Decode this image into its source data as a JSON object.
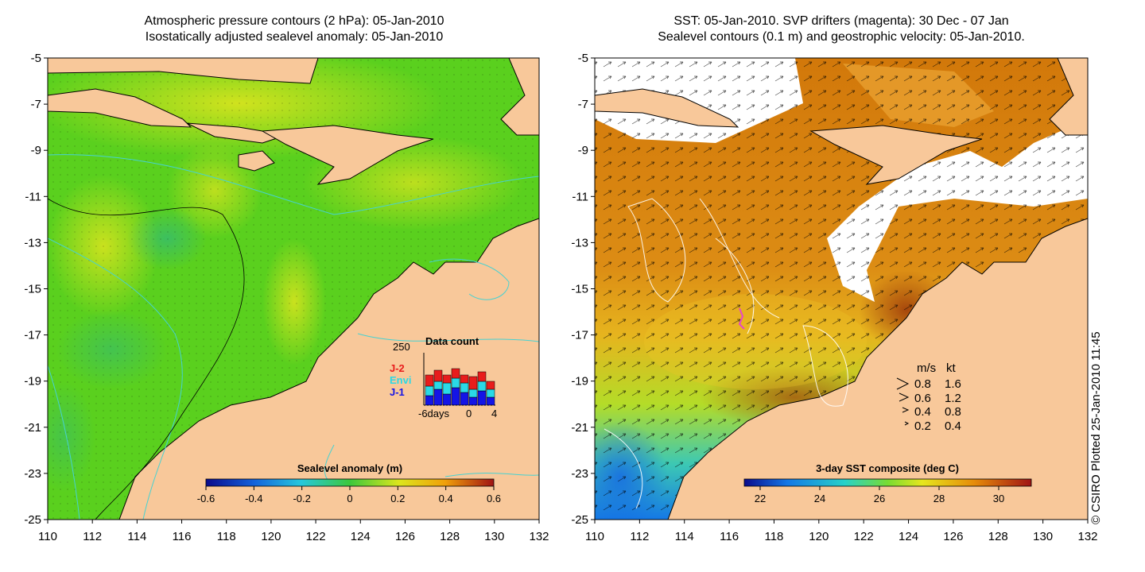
{
  "left_panel": {
    "title_line1": "Atmospheric pressure contours (2 hPa): 05-Jan-2010",
    "title_line2": "Isostatically adjusted sealevel anomaly: 05-Jan-2010",
    "colorbar": {
      "label": "Sealevel anomaly (m)",
      "ticks": [
        "-0.6",
        "-0.4",
        "-0.2",
        "0",
        "0.2",
        "0.4",
        "0.6"
      ]
    },
    "data_count": {
      "title": "Data count",
      "ymax_label": "250",
      "legend": [
        {
          "name": "J-2",
          "color": "#e81c1c"
        },
        {
          "name": "Envi",
          "color": "#2ad9e6"
        },
        {
          "name": "J-1",
          "color": "#1414e6"
        }
      ],
      "x_labels": [
        "-6days",
        "0",
        "4"
      ]
    }
  },
  "right_panel": {
    "title_line1": "SST: 05-Jan-2010. SVP drifters (magenta): 30 Dec - 07 Jan",
    "title_line2": "Sealevel contours (0.1 m) and geostrophic velocity: 05-Jan-2010.",
    "colorbar": {
      "label": "3-day SST composite (deg C)",
      "ticks": [
        "22",
        "24",
        "26",
        "28",
        "30"
      ]
    },
    "velocity_legend": {
      "header_ms": "m/s",
      "header_kt": "kt",
      "rows": [
        {
          "ms": "0.8",
          "kt": "1.6"
        },
        {
          "ms": "0.6",
          "kt": "1.2"
        },
        {
          "ms": "0.4",
          "kt": "0.8"
        },
        {
          "ms": "0.2",
          "kt": "0.4"
        }
      ]
    }
  },
  "axes": {
    "y_ticks": [
      "-5",
      "-7",
      "-9",
      "-11",
      "-13",
      "-15",
      "-17",
      "-19",
      "-21",
      "-23",
      "-25"
    ],
    "x_ticks": [
      "110",
      "112",
      "114",
      "116",
      "118",
      "120",
      "122",
      "124",
      "126",
      "128",
      "130",
      "132"
    ]
  },
  "credit": "© CSIRO Plotted 25-Jan-2010 11:45",
  "colors": {
    "land": "#f8c89a",
    "sea_green": "#5ad01e",
    "sea_yellow": "#c8e61e",
    "sst_orange": "#d2780a",
    "contour_cyan": "#46d2d2"
  }
}
